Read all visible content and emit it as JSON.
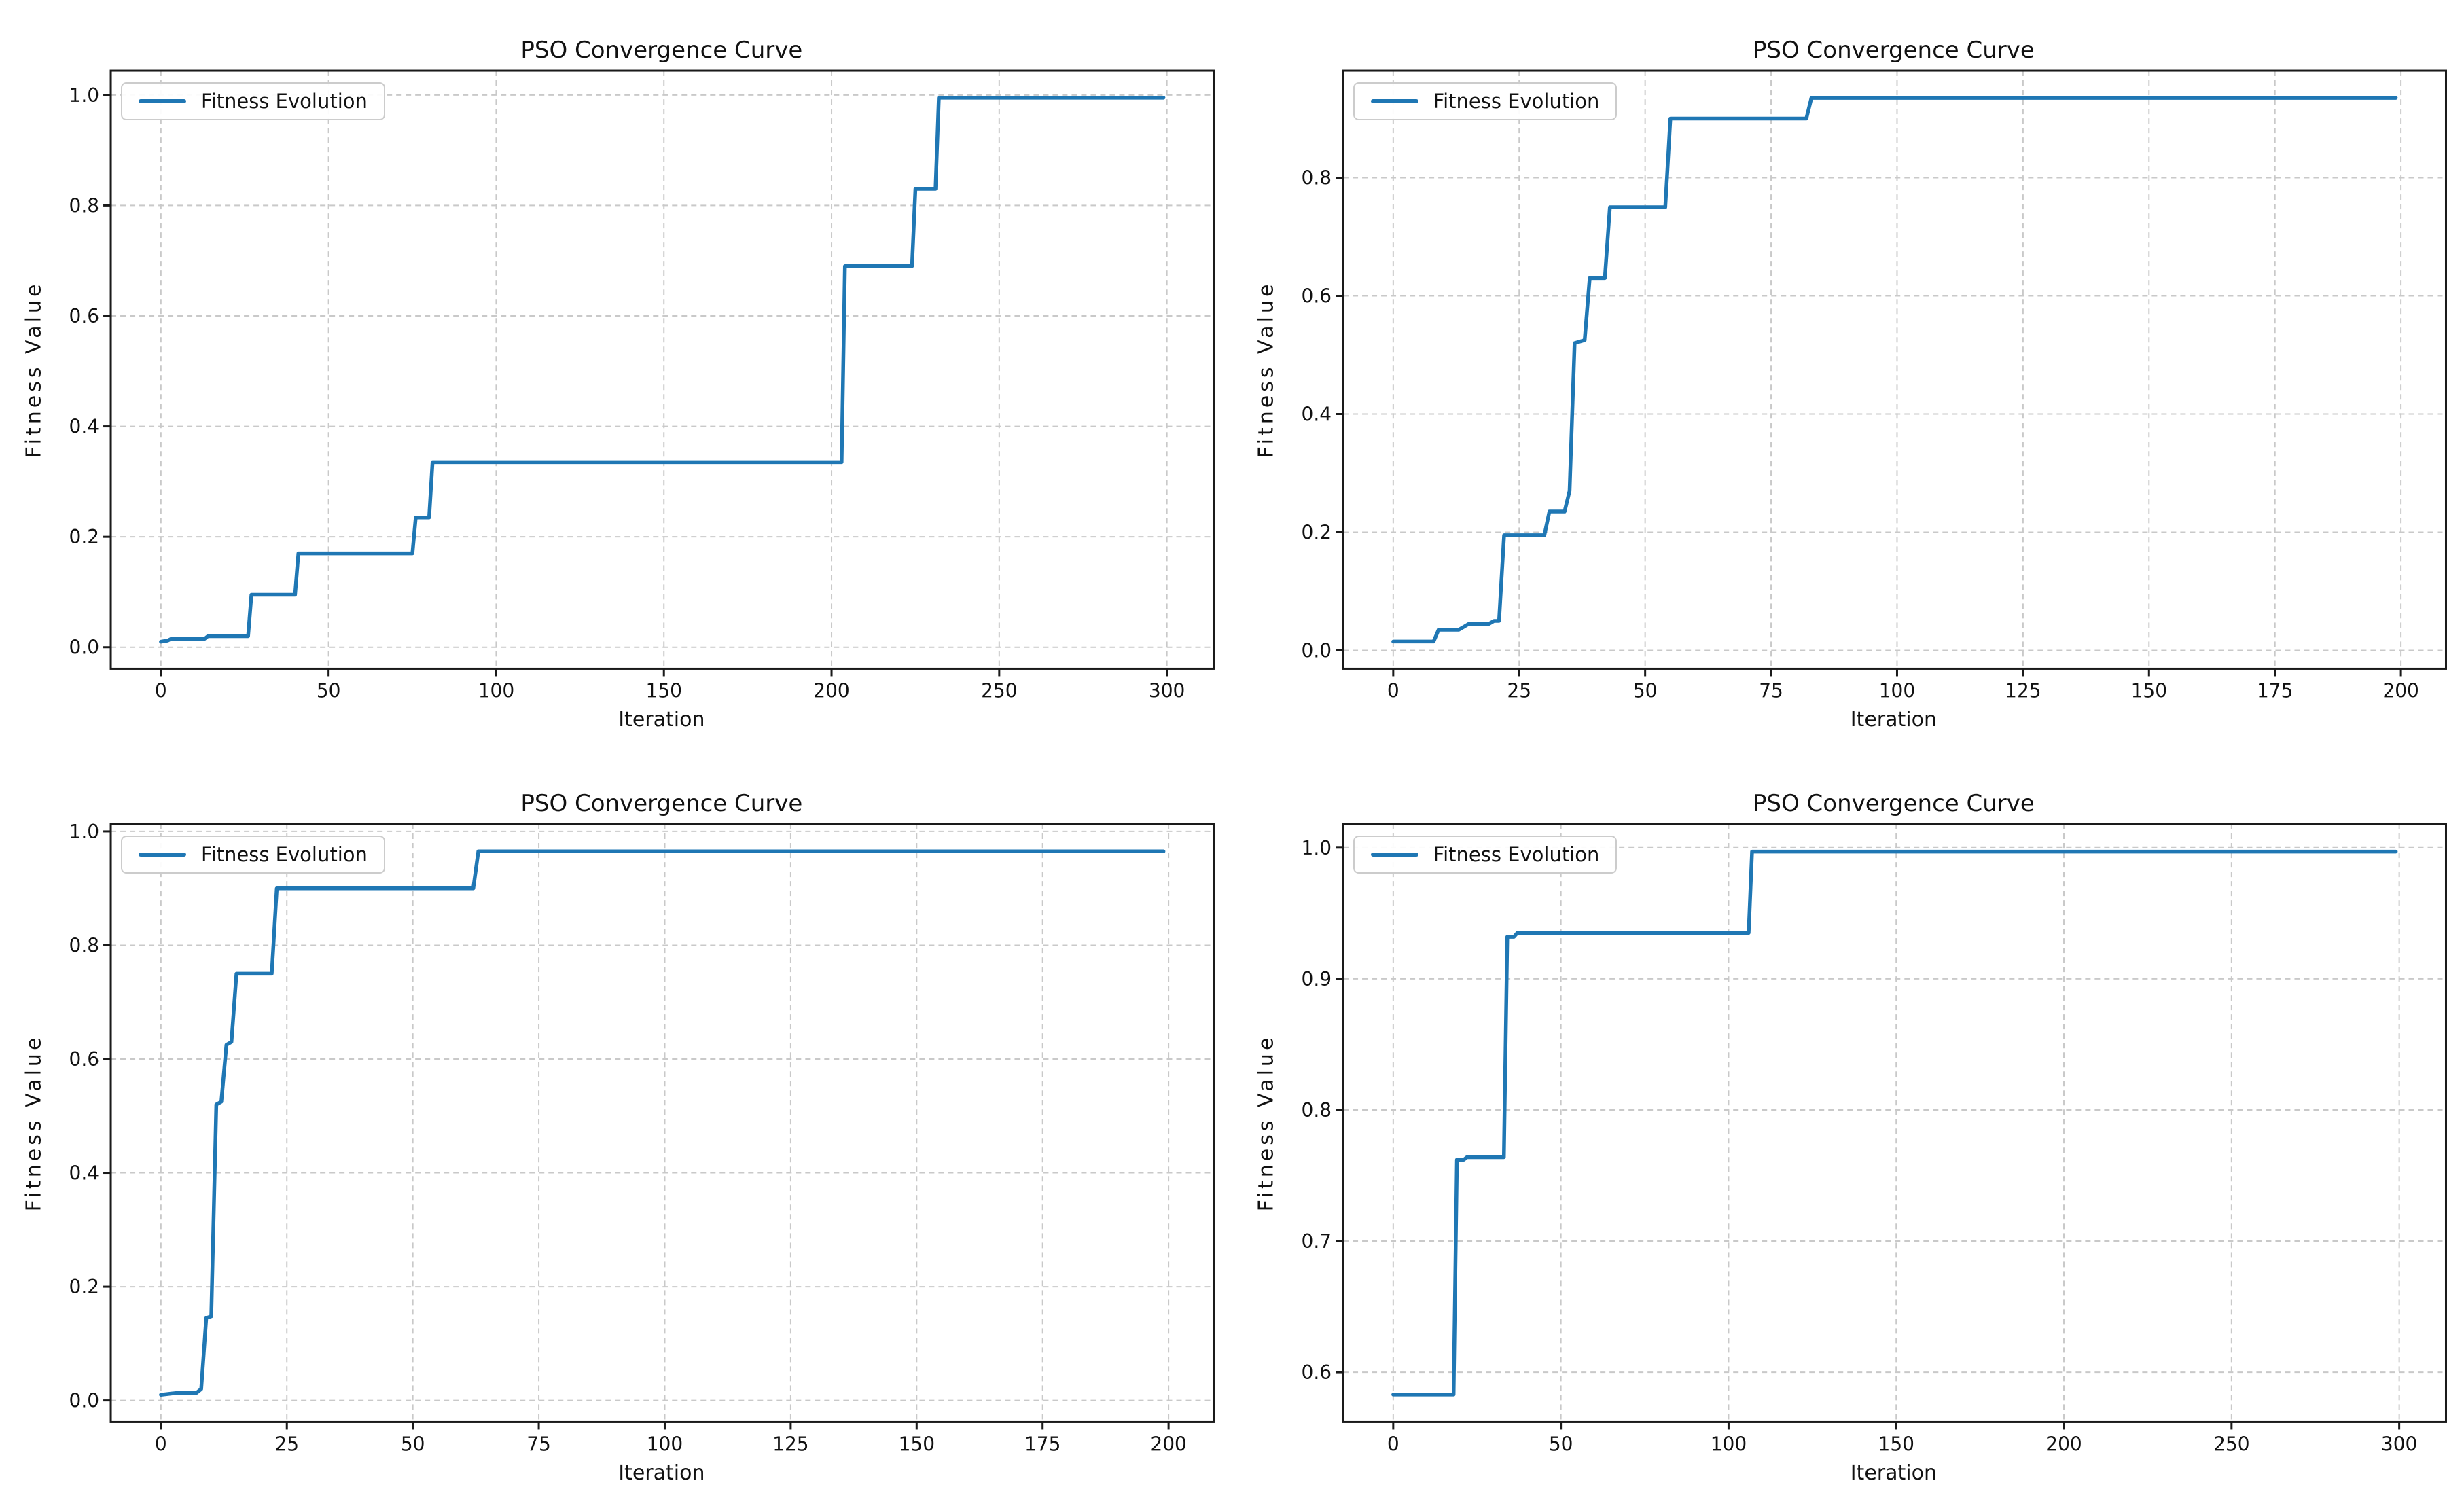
{
  "colors": {
    "line": "#1f77b4",
    "grid": "#c9c9c9",
    "spine": "#1a1a1a",
    "text": "#111111",
    "legend_border": "#cccccc"
  },
  "chart_data": [
    {
      "type": "line",
      "title": "PSO Convergence Curve",
      "xlabel": "Iteration",
      "ylabel": "Fitness Value",
      "legend": "Fitness Evolution",
      "legend_position": "upper-left",
      "grid": true,
      "xlim": [
        -14.95,
        313.95
      ],
      "ylim": [
        -0.039,
        1.044
      ],
      "xticks": [
        0,
        50,
        100,
        150,
        200,
        250,
        300
      ],
      "yticks": [
        0.0,
        0.2,
        0.4,
        0.6,
        0.8,
        1.0
      ],
      "ytick_labels": [
        "0.0",
        "0.2",
        "0.4",
        "0.6",
        "0.8",
        "1.0"
      ],
      "series": [
        {
          "name": "Fitness Evolution",
          "color": "#1f77b4",
          "points": [
            [
              0,
              0.01
            ],
            [
              2,
              0.012
            ],
            [
              3,
              0.015
            ],
            [
              13,
              0.015
            ],
            [
              14,
              0.02
            ],
            [
              26,
              0.02
            ],
            [
              27,
              0.095
            ],
            [
              40,
              0.095
            ],
            [
              41,
              0.17
            ],
            [
              75,
              0.17
            ],
            [
              76,
              0.235
            ],
            [
              80,
              0.235
            ],
            [
              81,
              0.335
            ],
            [
              203,
              0.335
            ],
            [
              204,
              0.69
            ],
            [
              224,
              0.69
            ],
            [
              225,
              0.83
            ],
            [
              231,
              0.83
            ],
            [
              232,
              0.995
            ],
            [
              299,
              0.995
            ]
          ]
        }
      ]
    },
    {
      "type": "line",
      "title": "PSO Convergence Curve",
      "xlabel": "Iteration",
      "ylabel": "Fitness Value",
      "legend": "Fitness Evolution",
      "legend_position": "upper-left",
      "grid": true,
      "xlim": [
        -9.95,
        208.95
      ],
      "ylim": [
        -0.031,
        0.981
      ],
      "xticks": [
        0,
        25,
        50,
        75,
        100,
        125,
        150,
        175,
        200
      ],
      "yticks": [
        0.0,
        0.2,
        0.4,
        0.6,
        0.8
      ],
      "ytick_labels": [
        "0.0",
        "0.2",
        "0.4",
        "0.6",
        "0.8"
      ],
      "series": [
        {
          "name": "Fitness Evolution",
          "color": "#1f77b4",
          "points": [
            [
              0,
              0.015
            ],
            [
              8,
              0.015
            ],
            [
              9,
              0.035
            ],
            [
              13,
              0.035
            ],
            [
              14,
              0.04
            ],
            [
              15,
              0.045
            ],
            [
              19,
              0.045
            ],
            [
              20,
              0.05
            ],
            [
              21,
              0.05
            ],
            [
              22,
              0.195
            ],
            [
              30,
              0.195
            ],
            [
              31,
              0.235
            ],
            [
              34,
              0.235
            ],
            [
              35,
              0.27
            ],
            [
              36,
              0.52
            ],
            [
              38,
              0.525
            ],
            [
              39,
              0.63
            ],
            [
              42,
              0.63
            ],
            [
              43,
              0.75
            ],
            [
              54,
              0.75
            ],
            [
              55,
              0.9
            ],
            [
              82,
              0.9
            ],
            [
              83,
              0.935
            ],
            [
              199,
              0.935
            ]
          ]
        }
      ]
    },
    {
      "type": "line",
      "title": "PSO Convergence Curve",
      "xlabel": "Iteration",
      "ylabel": "Fitness Value",
      "legend": "Fitness Evolution",
      "legend_position": "upper-left",
      "grid": true,
      "xlim": [
        -9.95,
        208.95
      ],
      "ylim": [
        -0.038,
        1.013
      ],
      "xticks": [
        0,
        25,
        50,
        75,
        100,
        125,
        150,
        175,
        200
      ],
      "yticks": [
        0.0,
        0.2,
        0.4,
        0.6,
        0.8,
        1.0
      ],
      "ytick_labels": [
        "0.0",
        "0.2",
        "0.4",
        "0.6",
        "0.8",
        "1.0"
      ],
      "series": [
        {
          "name": "Fitness Evolution",
          "color": "#1f77b4",
          "points": [
            [
              0,
              0.01
            ],
            [
              2,
              0.012
            ],
            [
              3,
              0.013
            ],
            [
              7,
              0.013
            ],
            [
              8,
              0.02
            ],
            [
              9,
              0.145
            ],
            [
              10,
              0.148
            ],
            [
              11,
              0.52
            ],
            [
              12,
              0.525
            ],
            [
              13,
              0.625
            ],
            [
              14,
              0.63
            ],
            [
              15,
              0.75
            ],
            [
              22,
              0.75
            ],
            [
              23,
              0.9
            ],
            [
              62,
              0.9
            ],
            [
              63,
              0.965
            ],
            [
              199,
              0.965
            ]
          ]
        }
      ]
    },
    {
      "type": "line",
      "title": "PSO Convergence Curve",
      "xlabel": "Iteration",
      "ylabel": "Fitness Value",
      "legend": "Fitness Evolution",
      "legend_position": "upper-left",
      "grid": true,
      "xlim": [
        -14.95,
        313.95
      ],
      "ylim": [
        0.562,
        1.018
      ],
      "xticks": [
        0,
        50,
        100,
        150,
        200,
        250,
        300
      ],
      "yticks": [
        0.6,
        0.7,
        0.8,
        0.9,
        1.0
      ],
      "ytick_labels": [
        "0.6",
        "0.7",
        "0.8",
        "0.9",
        "1.0"
      ],
      "series": [
        {
          "name": "Fitness Evolution",
          "color": "#1f77b4",
          "points": [
            [
              0,
              0.583
            ],
            [
              18,
              0.583
            ],
            [
              19,
              0.762
            ],
            [
              21,
              0.762
            ],
            [
              22,
              0.764
            ],
            [
              33,
              0.764
            ],
            [
              34,
              0.932
            ],
            [
              36,
              0.932
            ],
            [
              37,
              0.935
            ],
            [
              106,
              0.935
            ],
            [
              107,
              0.997
            ],
            [
              299,
              0.997
            ]
          ]
        }
      ]
    }
  ]
}
